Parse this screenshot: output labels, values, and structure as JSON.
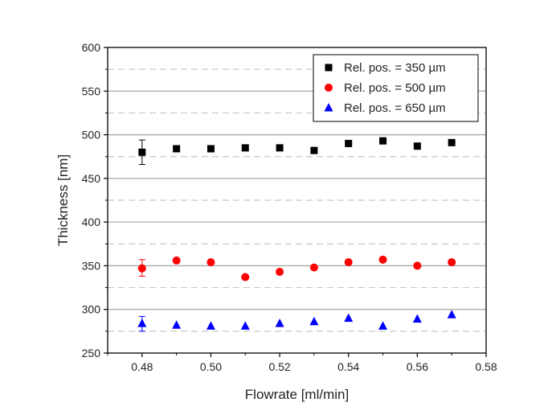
{
  "chart_data": {
    "type": "scatter",
    "xlabel": "Flowrate [ml/min]",
    "ylabel": "Thickness [nm]",
    "xlim": [
      0.47,
      0.58
    ],
    "ylim": [
      250,
      600
    ],
    "xticks": [
      0.48,
      0.5,
      0.52,
      0.54,
      0.56,
      0.58
    ],
    "xtick_labels": [
      "0.48",
      "0.50",
      "0.52",
      "0.54",
      "0.56",
      "0.58"
    ],
    "yticks": [
      250,
      300,
      350,
      400,
      450,
      500,
      550,
      600
    ],
    "ytick_labels": [
      "250",
      "300",
      "350",
      "400",
      "450",
      "500",
      "550",
      "600"
    ],
    "grid": {
      "major": "solid gray horizontal",
      "minor": "dashed light gray horizontal"
    },
    "legend": "top-right",
    "x": [
      0.48,
      0.49,
      0.5,
      0.51,
      0.52,
      0.53,
      0.54,
      0.55,
      0.56,
      0.57
    ],
    "series": [
      {
        "name": "Rel. pos. = 350 µm",
        "marker": "square",
        "color": "#000000",
        "values": [
          480,
          484,
          484,
          485,
          485,
          482,
          490,
          493,
          487,
          491
        ],
        "error_bars": [
          {
            "x": 0.48,
            "low": 466,
            "high": 494
          }
        ]
      },
      {
        "name": "Rel. pos. = 500 µm",
        "marker": "circle",
        "color": "#ff0000",
        "values": [
          347,
          356,
          354,
          337,
          343,
          348,
          354,
          357,
          350,
          354
        ],
        "error_bars": [
          {
            "x": 0.48,
            "low": 338,
            "high": 357
          }
        ]
      },
      {
        "name": "Rel. pos. = 650 µm",
        "marker": "triangle",
        "color": "#0000ff",
        "values": [
          284,
          282,
          281,
          281,
          284,
          286,
          290,
          281,
          289,
          294
        ],
        "error_bars": [
          {
            "x": 0.48,
            "low": 275,
            "high": 292
          }
        ]
      }
    ]
  }
}
